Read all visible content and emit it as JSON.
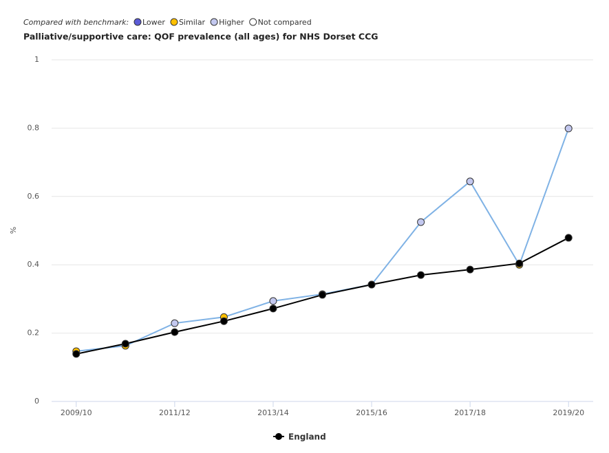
{
  "chart_data": {
    "type": "line",
    "title": "Palliative/supportive care: QOF prevalence (all ages) for NHS Dorset CCG",
    "benchmark_legend": {
      "title": "Compared with benchmark:",
      "items": [
        {
          "name": "Lower",
          "color": "#5b5bd6"
        },
        {
          "name": "Similar",
          "color": "#ffc000"
        },
        {
          "name": "Higher",
          "color": "#c3c8ef"
        },
        {
          "name": "Not compared",
          "color": "#ffffff"
        }
      ]
    },
    "y_label": "%",
    "categories": [
      "2009/10",
      null,
      "2011/12",
      null,
      "2013/14",
      null,
      "2015/16",
      null,
      "2017/18",
      null,
      "2019/20"
    ],
    "series": [
      {
        "color": "#7fb2e5",
        "point_colors": [
          "#ffc000",
          "#ffc000",
          "#c3c8ef",
          "#ffc000",
          "#c3c8ef",
          "#ffc000",
          "#ffc000",
          "#c3c8ef",
          "#c3c8ef",
          "#ffc000",
          "#c3c8ef"
        ],
        "values": [
          0.147,
          0.163,
          0.229,
          0.247,
          0.294,
          0.314,
          0.342,
          0.525,
          0.644,
          0.4,
          0.799
        ]
      },
      {
        "name": "England",
        "color": "#000000",
        "values": [
          0.139,
          0.169,
          0.203,
          0.235,
          0.272,
          0.312,
          0.342,
          0.37,
          0.386,
          0.404,
          0.479
        ]
      }
    ],
    "ylim": [
      0,
      1
    ],
    "yticks": [
      0,
      0.2,
      0.4,
      0.6,
      0.8,
      1
    ],
    "grid": true
  }
}
